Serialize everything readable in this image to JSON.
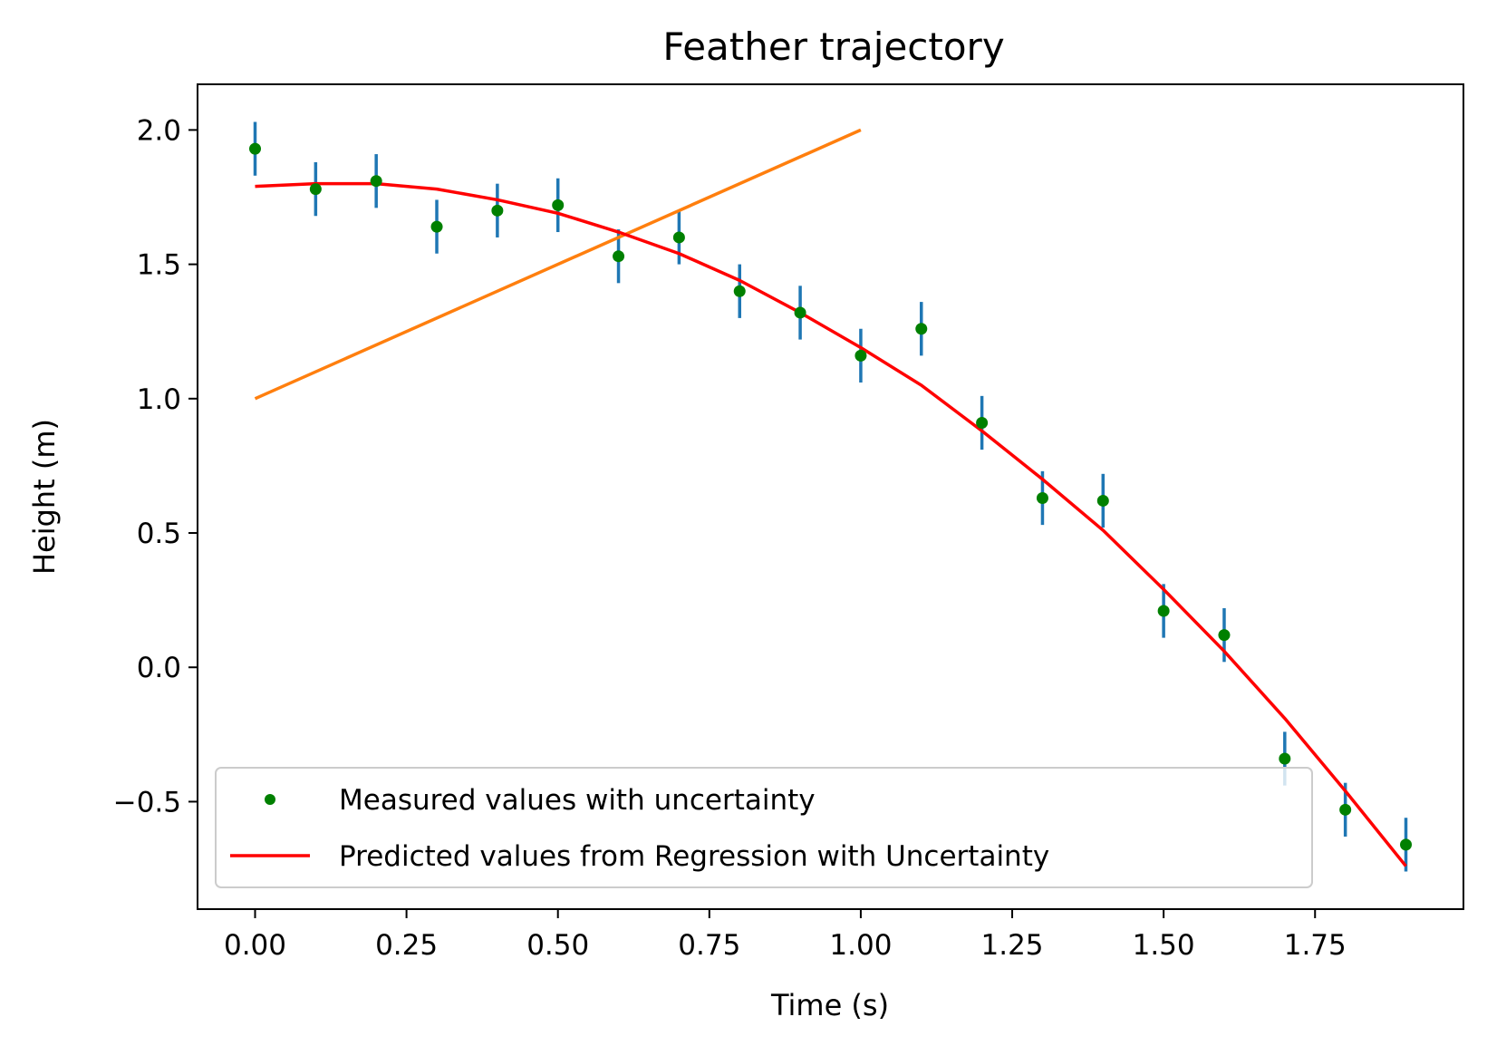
{
  "chart_data": {
    "type": "scatter",
    "title": "Feather trajectory",
    "xlabel": "Time (s)",
    "ylabel": "Height (m)",
    "xlim": [
      -0.095,
      1.995
    ],
    "ylim": [
      -0.9,
      2.17
    ],
    "x_ticks": [
      0.0,
      0.25,
      0.5,
      0.75,
      1.0,
      1.25,
      1.5,
      1.75
    ],
    "x_tick_labels": [
      "0.00",
      "0.25",
      "0.50",
      "0.75",
      "1.00",
      "1.25",
      "1.50",
      "1.75"
    ],
    "y_ticks": [
      -0.5,
      0.0,
      0.5,
      1.0,
      1.5,
      2.0
    ],
    "y_tick_labels": [
      "−0.5",
      "0.0",
      "0.5",
      "1.0",
      "1.5",
      "2.0"
    ],
    "grid": false,
    "legend_position": "lower-left",
    "series": [
      {
        "name": "Measured values with uncertainty",
        "kind": "points",
        "color": "#008000",
        "error_color": "#1f77b4",
        "x": [
          0.0,
          0.1,
          0.2,
          0.3,
          0.4,
          0.5,
          0.6,
          0.7,
          0.8,
          0.9,
          1.0,
          1.1,
          1.2,
          1.3,
          1.4,
          1.5,
          1.6,
          1.7,
          1.8,
          1.9
        ],
        "y": [
          1.93,
          1.78,
          1.81,
          1.64,
          1.7,
          1.72,
          1.53,
          1.6,
          1.4,
          1.32,
          1.16,
          1.26,
          0.91,
          0.63,
          0.62,
          0.21,
          0.12,
          -0.34,
          -0.53,
          -0.66
        ],
        "yerr": 0.1
      },
      {
        "name": "Predicted values from Regression with Uncertainty",
        "kind": "line",
        "color": "#ff0000",
        "x": [
          0.0,
          0.1,
          0.2,
          0.3,
          0.4,
          0.5,
          0.6,
          0.7,
          0.8,
          0.9,
          1.0,
          1.1,
          1.2,
          1.3,
          1.4,
          1.5,
          1.6,
          1.7,
          1.8,
          1.9
        ],
        "y": [
          1.79,
          1.8,
          1.8,
          1.78,
          1.74,
          1.69,
          1.62,
          1.54,
          1.44,
          1.32,
          1.19,
          1.05,
          0.88,
          0.7,
          0.51,
          0.29,
          0.06,
          -0.19,
          -0.46,
          -0.74
        ]
      },
      {
        "kind": "line",
        "color": "#ff7f0e",
        "x": [
          0.0,
          1.0
        ],
        "y": [
          1.0,
          2.0
        ]
      }
    ]
  }
}
